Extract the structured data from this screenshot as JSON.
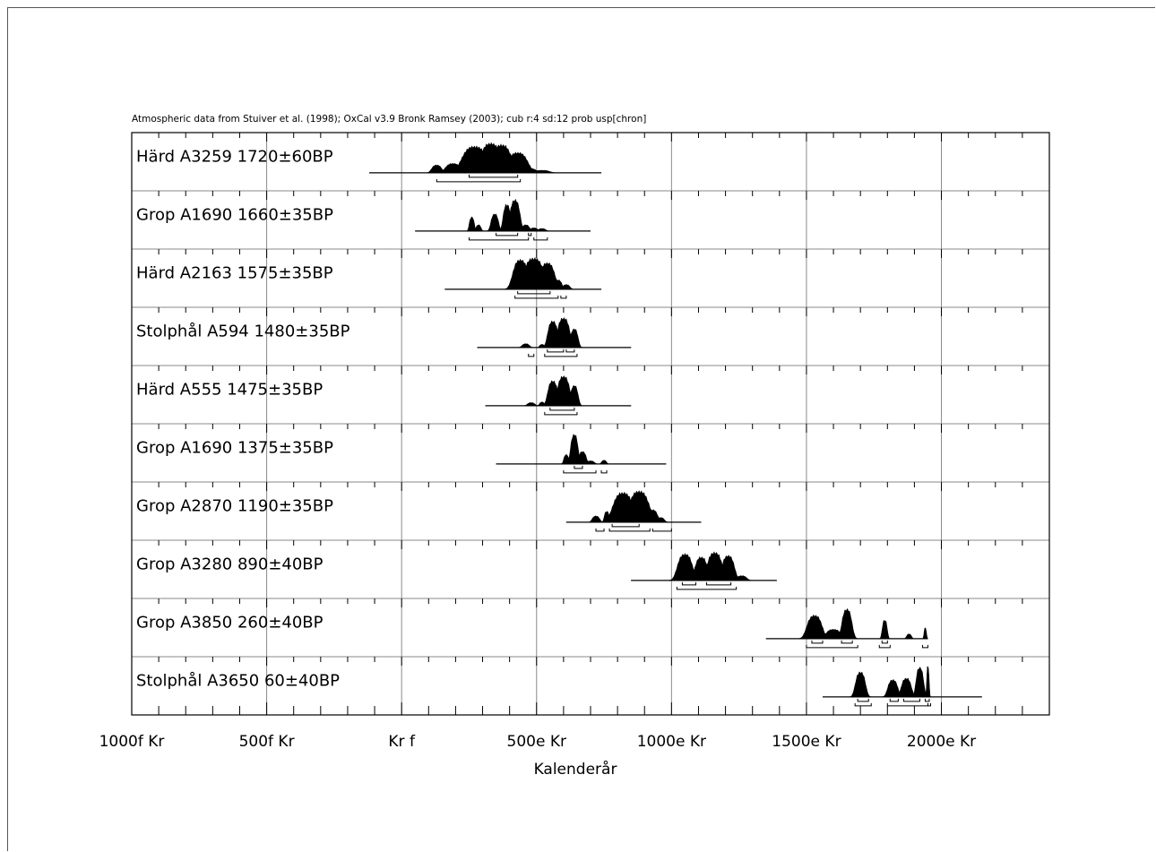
{
  "chart_data": {
    "type": "area",
    "subtitle": "Atmospheric data from Stuiver et al. (1998); OxCal v3.9 Bronk Ramsey (2003); cub r:4 sd:12 prob usp[chron]",
    "xlabel": "Kalenderår",
    "xlim": [
      -1000,
      2400
    ],
    "x_ticks": [
      {
        "value": -1000,
        "label": "1000f Kr"
      },
      {
        "value": -500,
        "label": "500f Kr"
      },
      {
        "value": 0,
        "label": "Kr f"
      },
      {
        "value": 500,
        "label": "500e Kr"
      },
      {
        "value": 1000,
        "label": "1000e Kr"
      },
      {
        "value": 1500,
        "label": "1500e Kr"
      },
      {
        "value": 2000,
        "label": "2000e Kr"
      }
    ],
    "grid": true,
    "series": [
      {
        "name": "Härd A3259",
        "age": "1720±60BP",
        "line": [
          -120,
          740
        ],
        "peaks": [
          [
            130,
            20,
            0.25
          ],
          [
            190,
            30,
            0.3
          ],
          [
            270,
            50,
            0.85
          ],
          [
            330,
            40,
            0.95
          ],
          [
            370,
            40,
            0.9
          ],
          [
            430,
            40,
            0.65
          ],
          [
            470,
            30,
            0.15
          ],
          [
            520,
            30,
            0.08
          ]
        ],
        "sig1": [
          [
            250,
            430
          ]
        ],
        "sig2": [
          [
            130,
            440
          ]
        ]
      },
      {
        "name": "Grop A1690",
        "age": "1660±35BP",
        "line": [
          50,
          700
        ],
        "peaks": [
          [
            260,
            10,
            0.45
          ],
          [
            285,
            10,
            0.2
          ],
          [
            345,
            15,
            0.55
          ],
          [
            390,
            15,
            0.85
          ],
          [
            420,
            20,
            1.0
          ],
          [
            460,
            15,
            0.2
          ],
          [
            490,
            15,
            0.1
          ],
          [
            520,
            15,
            0.08
          ]
        ],
        "sig1": [
          [
            350,
            430
          ],
          [
            470,
            480
          ]
        ],
        "sig2": [
          [
            250,
            470
          ],
          [
            490,
            540
          ]
        ]
      },
      {
        "name": "Härd A2163",
        "age": "1575±35BP",
        "line": [
          160,
          740
        ],
        "peaks": [
          [
            440,
            30,
            0.95
          ],
          [
            490,
            40,
            1.0
          ],
          [
            540,
            30,
            0.85
          ],
          [
            580,
            15,
            0.3
          ],
          [
            610,
            15,
            0.15
          ]
        ],
        "sig1": [
          [
            430,
            550
          ]
        ],
        "sig2": [
          [
            420,
            580
          ],
          [
            590,
            610
          ]
        ]
      },
      {
        "name": "Stolphål A594",
        "age": "1480±35BP",
        "line": [
          280,
          850
        ],
        "peaks": [
          [
            460,
            15,
            0.12
          ],
          [
            520,
            10,
            0.1
          ],
          [
            560,
            20,
            0.85
          ],
          [
            600,
            25,
            0.95
          ],
          [
            640,
            15,
            0.6
          ]
        ],
        "sig1": [
          [
            540,
            600
          ],
          [
            610,
            640
          ]
        ],
        "sig2": [
          [
            470,
            490
          ],
          [
            530,
            650
          ]
        ]
      },
      {
        "name": "Härd A555",
        "age": "1475±35BP",
        "line": [
          310,
          850
        ],
        "peaks": [
          [
            480,
            15,
            0.1
          ],
          [
            520,
            10,
            0.12
          ],
          [
            560,
            20,
            0.8
          ],
          [
            600,
            25,
            0.95
          ],
          [
            640,
            15,
            0.65
          ]
        ],
        "sig1": [
          [
            550,
            640
          ]
        ],
        "sig2": [
          [
            530,
            650
          ]
        ]
      },
      {
        "name": "Grop A1690",
        "age": "1375±35BP",
        "line": [
          350,
          980
        ],
        "peaks": [
          [
            610,
            10,
            0.3
          ],
          [
            640,
            15,
            0.95
          ],
          [
            670,
            15,
            0.4
          ],
          [
            700,
            15,
            0.1
          ],
          [
            750,
            10,
            0.12
          ]
        ],
        "sig1": [
          [
            640,
            670
          ]
        ],
        "sig2": [
          [
            600,
            720
          ],
          [
            740,
            760
          ]
        ]
      },
      {
        "name": "Grop A2870",
        "age": "1190±35BP",
        "line": [
          610,
          1110
        ],
        "peaks": [
          [
            720,
            15,
            0.2
          ],
          [
            760,
            10,
            0.35
          ],
          [
            820,
            40,
            0.95
          ],
          [
            880,
            40,
            1.0
          ],
          [
            930,
            20,
            0.4
          ],
          [
            960,
            15,
            0.15
          ]
        ],
        "sig1": [
          [
            780,
            880
          ]
        ],
        "sig2": [
          [
            720,
            750
          ],
          [
            770,
            920
          ],
          [
            930,
            1000
          ]
        ]
      },
      {
        "name": "Grop A3280",
        "age": "890±40BP",
        "line": [
          850,
          1390
        ],
        "peaks": [
          [
            1050,
            30,
            0.85
          ],
          [
            1110,
            25,
            0.75
          ],
          [
            1160,
            30,
            0.9
          ],
          [
            1210,
            25,
            0.8
          ],
          [
            1260,
            20,
            0.15
          ]
        ],
        "sig1": [
          [
            1040,
            1090
          ],
          [
            1130,
            1220
          ]
        ],
        "sig2": [
          [
            1020,
            1240
          ]
        ]
      },
      {
        "name": "Grop A3850",
        "age": "260±40BP",
        "line": [
          1350,
          1950
        ],
        "peaks": [
          [
            1530,
            30,
            0.75
          ],
          [
            1600,
            30,
            0.3
          ],
          [
            1650,
            20,
            0.95
          ],
          [
            1790,
            10,
            0.6
          ],
          [
            1880,
            10,
            0.15
          ],
          [
            1940,
            5,
            0.35
          ]
        ],
        "sig1": [
          [
            1520,
            1560
          ],
          [
            1630,
            1670
          ],
          [
            1780,
            1800
          ]
        ],
        "sig2": [
          [
            1500,
            1690
          ],
          [
            1770,
            1810
          ],
          [
            1930,
            1950
          ]
        ]
      },
      {
        "name": "Stolphål A3650",
        "age": "60±40BP",
        "line": [
          1560,
          2150
        ],
        "peaks": [
          [
            1700,
            20,
            0.8
          ],
          [
            1820,
            20,
            0.55
          ],
          [
            1870,
            20,
            0.6
          ],
          [
            1920,
            15,
            0.95
          ],
          [
            1950,
            5,
            1.0
          ]
        ],
        "sig1": [
          [
            1690,
            1730
          ],
          [
            1810,
            1840
          ],
          [
            1860,
            1920
          ],
          [
            1940,
            1955
          ]
        ],
        "sig2": [
          [
            1680,
            1740
          ],
          [
            1800,
            1950
          ],
          [
            1950,
            1960
          ]
        ]
      }
    ]
  }
}
